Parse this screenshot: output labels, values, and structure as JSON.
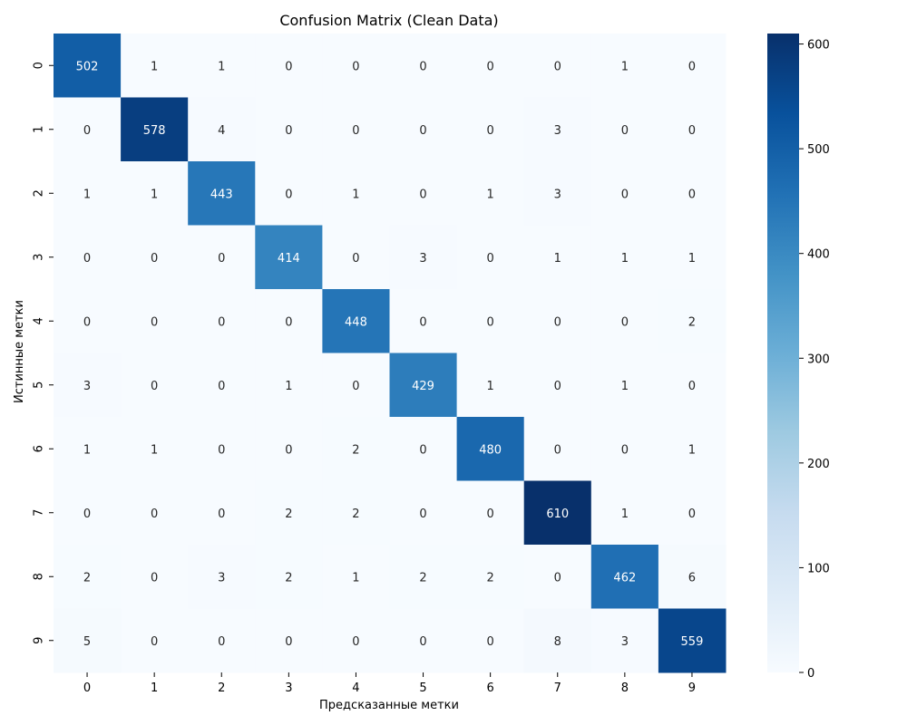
{
  "chart_data": {
    "type": "heatmap",
    "title": "Confusion Matrix (Clean Data)",
    "xlabel": "Предсказанные метки",
    "ylabel": "Истинные метки",
    "x_categories": [
      "0",
      "1",
      "2",
      "3",
      "4",
      "5",
      "6",
      "7",
      "8",
      "9"
    ],
    "y_categories": [
      "0",
      "1",
      "2",
      "3",
      "4",
      "5",
      "6",
      "7",
      "8",
      "9"
    ],
    "values": [
      [
        502,
        1,
        1,
        0,
        0,
        0,
        0,
        0,
        1,
        0
      ],
      [
        0,
        578,
        4,
        0,
        0,
        0,
        0,
        3,
        0,
        0
      ],
      [
        1,
        1,
        443,
        0,
        1,
        0,
        1,
        3,
        0,
        0
      ],
      [
        0,
        0,
        0,
        414,
        0,
        3,
        0,
        1,
        1,
        1
      ],
      [
        0,
        0,
        0,
        0,
        448,
        0,
        0,
        0,
        0,
        2
      ],
      [
        3,
        0,
        0,
        1,
        0,
        429,
        1,
        0,
        1,
        0
      ],
      [
        1,
        1,
        0,
        0,
        2,
        0,
        480,
        0,
        0,
        1
      ],
      [
        0,
        0,
        0,
        2,
        2,
        0,
        0,
        610,
        1,
        0
      ],
      [
        2,
        0,
        3,
        2,
        1,
        2,
        2,
        0,
        462,
        6
      ],
      [
        5,
        0,
        0,
        0,
        0,
        0,
        0,
        8,
        3,
        559
      ]
    ],
    "colormap": "Blues",
    "colormap_colors": [
      "#f7fbff",
      "#deebf7",
      "#c6dbef",
      "#9ecae1",
      "#6baed6",
      "#4292c6",
      "#2171b5",
      "#08519c",
      "#08306b"
    ],
    "colorbar": {
      "range": [
        0,
        610
      ],
      "ticks": [
        0,
        100,
        200,
        300,
        400,
        500,
        600
      ]
    },
    "grid": false
  }
}
